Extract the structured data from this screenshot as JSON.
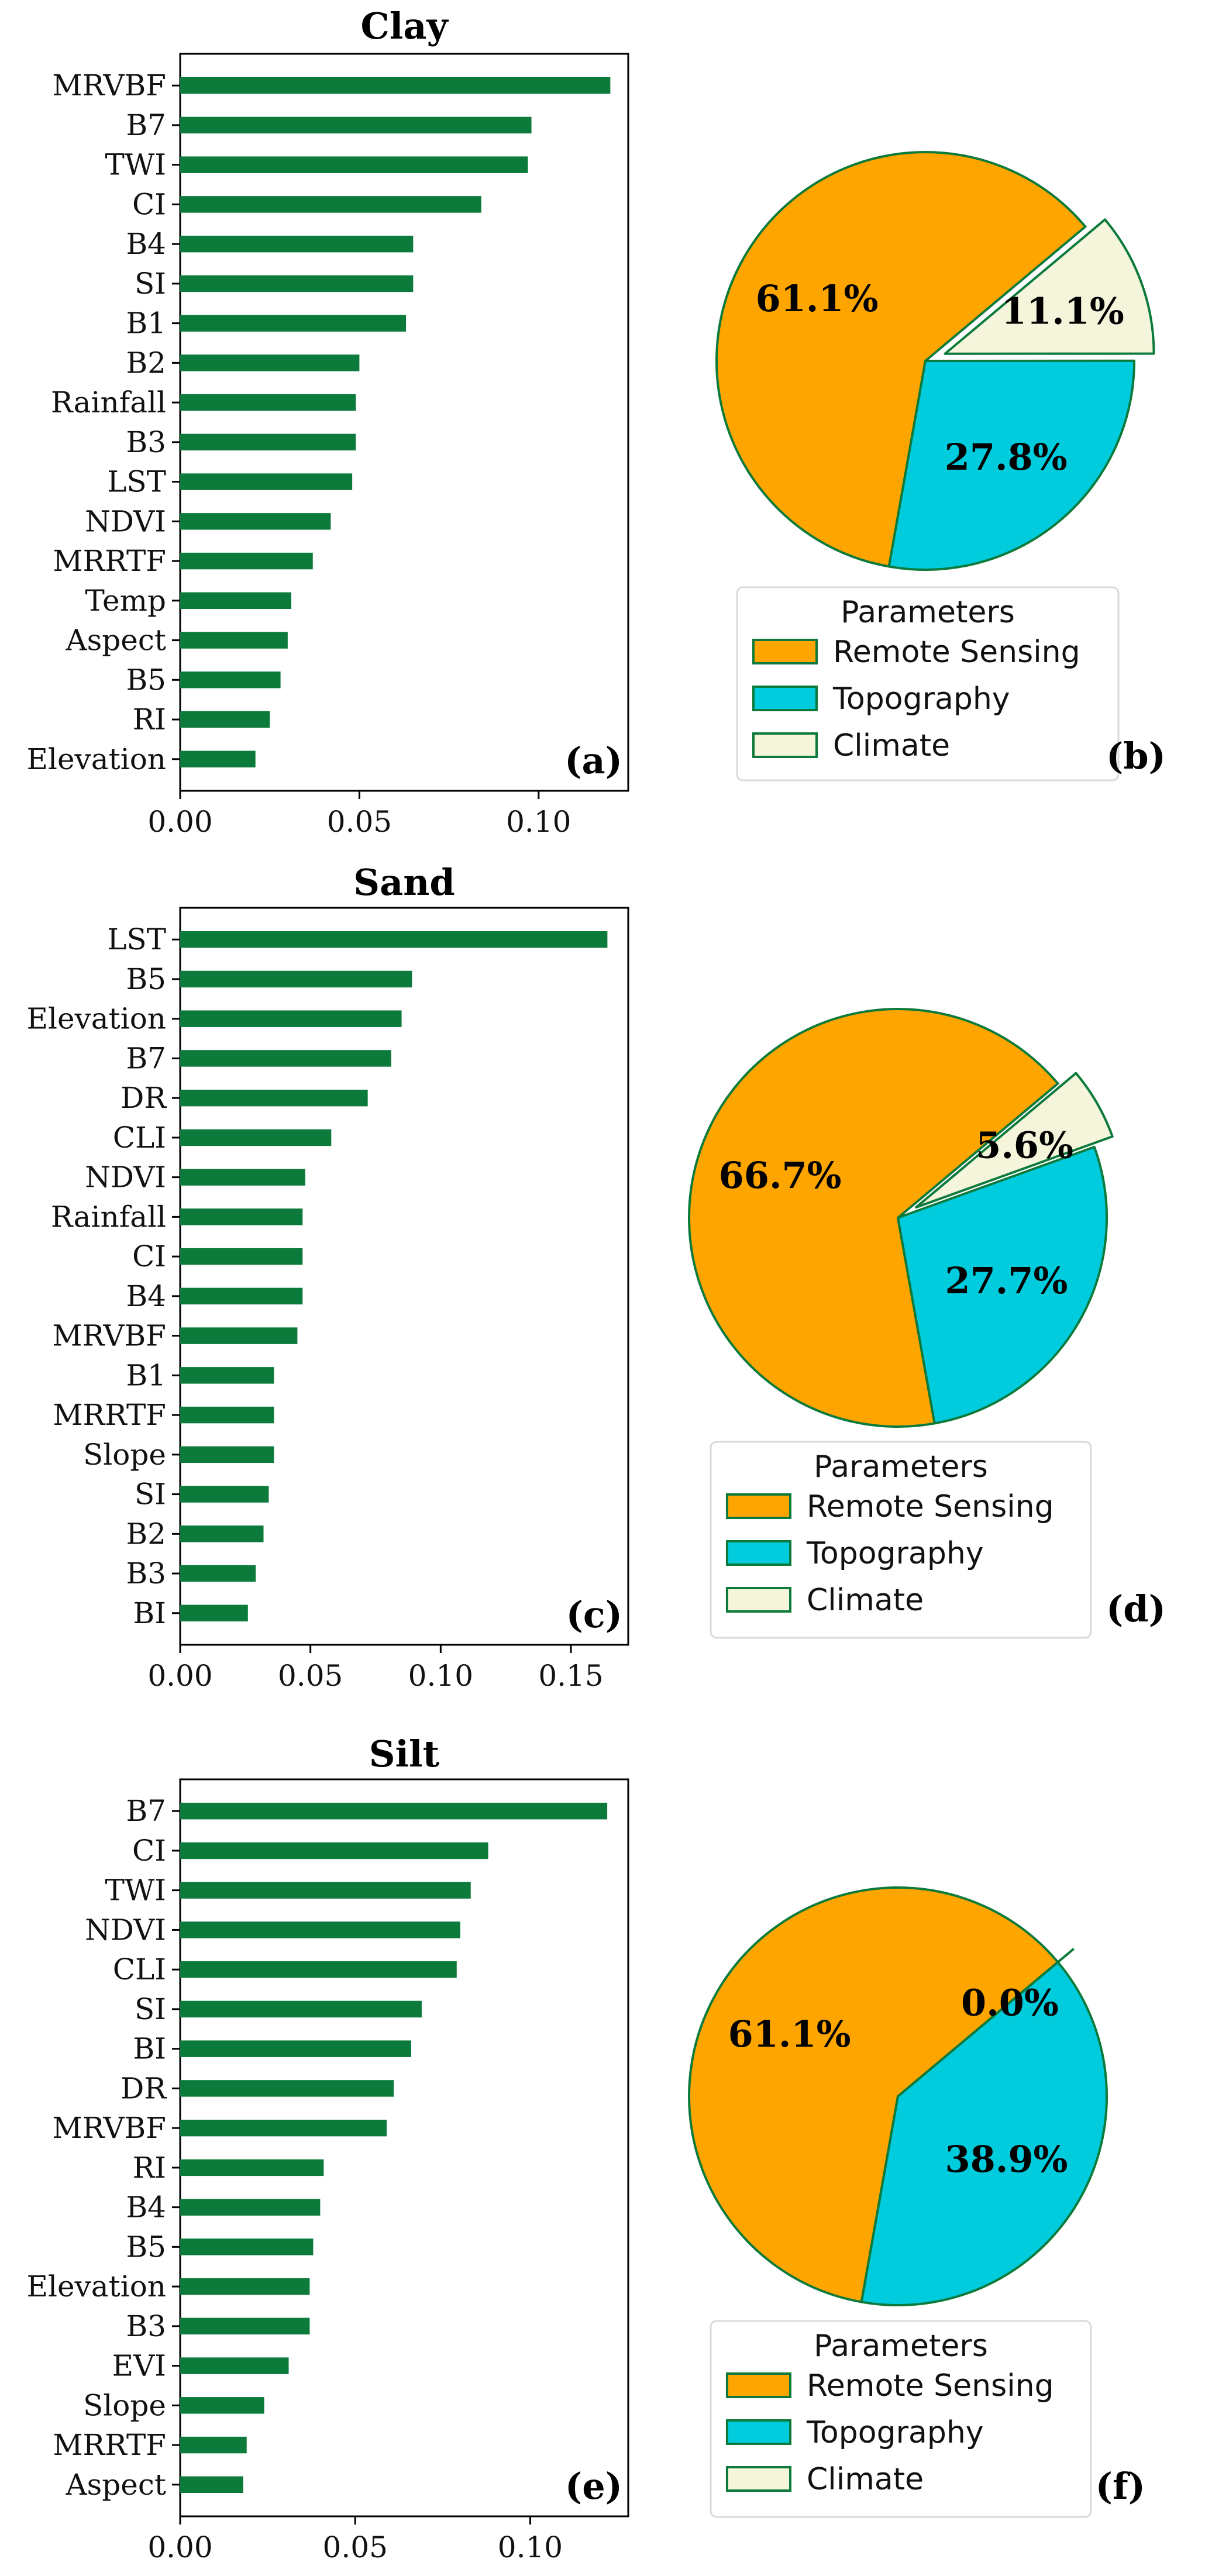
{
  "colors": {
    "bar": "#0b7a3a",
    "remote_sensing": "#ffa500",
    "topography": "#00ccdd",
    "climate": "#f5f5dc",
    "pie_edge": "#0b7a3a",
    "axis": "#000000"
  },
  "chart_data": [
    {
      "id": "a",
      "type": "bar",
      "orientation": "horizontal",
      "title": "Clay",
      "panel_label": "(a)",
      "categories": [
        "MRVBF",
        "B7",
        "TWI",
        "CI",
        "B4",
        "SI",
        "B1",
        "B2",
        "Rainfall",
        "B3",
        "LST",
        "NDVI",
        "MRRTF",
        "Temp",
        "Aspect",
        "B5",
        "RI",
        "Elevation"
      ],
      "values": [
        0.12,
        0.098,
        0.097,
        0.084,
        0.065,
        0.065,
        0.063,
        0.05,
        0.049,
        0.049,
        0.048,
        0.042,
        0.037,
        0.031,
        0.03,
        0.028,
        0.025,
        0.021
      ],
      "xlim": [
        0,
        0.125
      ],
      "xticks": [
        0.0,
        0.05,
        0.1
      ],
      "xtick_labels": [
        "0.00",
        "0.05",
        "0.10"
      ]
    },
    {
      "id": "b",
      "type": "pie",
      "panel_label": "(b)",
      "legend_title": "Parameters",
      "labels": [
        "Remote Sensing",
        "Topography",
        "Climate"
      ],
      "values": [
        61.1,
        27.8,
        11.1
      ],
      "value_labels": [
        "61.1%",
        "27.8%",
        "11.1%"
      ],
      "explode": [
        0,
        0,
        0.1
      ]
    },
    {
      "id": "c",
      "type": "bar",
      "orientation": "horizontal",
      "title": "Sand",
      "panel_label": "(c)",
      "categories": [
        "LST",
        "B5",
        "Elevation",
        "B7",
        "DR",
        "CLI",
        "NDVI",
        "Rainfall",
        "CI",
        "B4",
        "MRVBF",
        "B1",
        "MRRTF",
        "Slope",
        "SI",
        "B2",
        "B3",
        "BI"
      ],
      "values": [
        0.164,
        0.089,
        0.085,
        0.081,
        0.072,
        0.058,
        0.048,
        0.047,
        0.047,
        0.047,
        0.045,
        0.036,
        0.036,
        0.036,
        0.034,
        0.032,
        0.029,
        0.026
      ],
      "xlim": [
        0,
        0.172
      ],
      "xticks": [
        0.0,
        0.05,
        0.1,
        0.15
      ],
      "xtick_labels": [
        "0.00",
        "0.05",
        "0.10",
        "0.15"
      ]
    },
    {
      "id": "d",
      "type": "pie",
      "panel_label": "(d)",
      "legend_title": "Parameters",
      "labels": [
        "Remote Sensing",
        "Topography",
        "Climate"
      ],
      "values": [
        66.7,
        27.7,
        5.6
      ],
      "value_labels": [
        "66.7%",
        "27.7%",
        "5.6%"
      ],
      "explode": [
        0,
        0,
        0.1
      ]
    },
    {
      "id": "e",
      "type": "bar",
      "orientation": "horizontal",
      "title": "Silt",
      "panel_label": "(e)",
      "categories": [
        "B7",
        "CI",
        "TWI",
        "NDVI",
        "CLI",
        "SI",
        "BI",
        "DR",
        "MRVBF",
        "RI",
        "B4",
        "B5",
        "Elevation",
        "B3",
        "EVI",
        "Slope",
        "MRRTF",
        "Aspect"
      ],
      "values": [
        0.122,
        0.088,
        0.083,
        0.08,
        0.079,
        0.069,
        0.066,
        0.061,
        0.059,
        0.041,
        0.04,
        0.038,
        0.037,
        0.037,
        0.031,
        0.024,
        0.019,
        0.018
      ],
      "xlim": [
        0,
        0.128
      ],
      "xticks": [
        0.0,
        0.05,
        0.1
      ],
      "xtick_labels": [
        "0.00",
        "0.05",
        "0.10"
      ]
    },
    {
      "id": "f",
      "type": "pie",
      "panel_label": "(f)",
      "legend_title": "Parameters",
      "labels": [
        "Remote Sensing",
        "Topography",
        "Climate"
      ],
      "values": [
        61.1,
        38.9,
        0.0
      ],
      "value_labels": [
        "61.1%",
        "38.9%",
        "0.0%"
      ],
      "explode": [
        0,
        0,
        0.1
      ]
    }
  ]
}
